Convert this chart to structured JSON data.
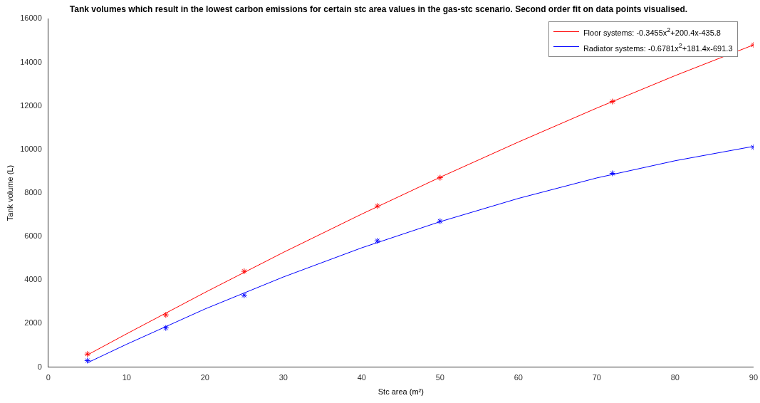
{
  "chart_data": {
    "type": "scatter",
    "title": "Tank volumes which result in the lowest carbon emissions for certain stc area values in the gas-stc scenario. Second order fit on data points visualised.",
    "xlabel": "Stc area (m²)",
    "ylabel": "Tank volume (L)",
    "x": [
      5,
      15,
      25,
      42,
      50,
      72,
      90
    ],
    "series": [
      {
        "color": "#ff0000",
        "marker": "cross",
        "values": [
          600,
          2400,
          4400,
          7400,
          8700,
          12200,
          14800
        ]
      },
      {
        "color": "#0000ff",
        "marker": "cross",
        "values": [
          300,
          1800,
          3300,
          5800,
          6700,
          8900,
          10100
        ]
      },
      {
        "type": "line",
        "name": "Floor systems: -0.3455x$^{2}$+200.4x-435.8",
        "color": "#ff0000",
        "marker": "none",
        "x": [
          5,
          10,
          20,
          30,
          40,
          50,
          60,
          70,
          80,
          90
        ],
        "values": [
          560,
          1530,
          3430,
          5270,
          7030,
          8720,
          10340,
          11900,
          13390,
          14800
        ]
      },
      {
        "type": "line",
        "name": "Radiator systems: -0.6781x$^{2}$+181.4x-691.3",
        "color": "#0000ff",
        "marker": "none",
        "x": [
          5,
          10,
          20,
          30,
          40,
          50,
          60,
          70,
          80,
          90
        ],
        "values": [
          200,
          1050,
          2670,
          4140,
          5480,
          6680,
          7750,
          8690,
          9480,
          10140
        ]
      }
    ],
    "xlim": [
      0,
      90
    ],
    "xticks": [
      0,
      10,
      20,
      30,
      40,
      50,
      60,
      70,
      80,
      90
    ],
    "ylim": [
      0,
      16000
    ],
    "yticks": [
      0,
      2000,
      4000,
      6000,
      8000,
      10000,
      12000,
      14000,
      16000
    ],
    "grid": false,
    "legend": "top right"
  }
}
